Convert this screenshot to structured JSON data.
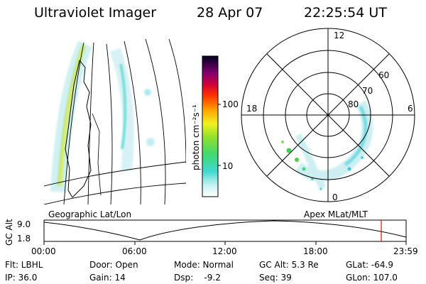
{
  "header": {
    "title": "Ultraviolet Imager",
    "date": "28 Apr 07",
    "time": "22:25:54 UT"
  },
  "colorbar": {
    "label": "photon cm⁻²s⁻¹",
    "ticks": [
      "100",
      "10"
    ]
  },
  "polar": {
    "mlt_labels": {
      "top": "12",
      "left": "18",
      "right": "6",
      "bottom": "0"
    },
    "lat_labels": [
      "60",
      "70",
      "80"
    ]
  },
  "timeline": {
    "left_title": "Geographic Lat/Lon",
    "right_title": "Apex MLat/MLT",
    "ylabel": "GC Alt",
    "ytick_top": "9.0",
    "ytick_bottom": "1.8",
    "xticks": [
      "00:00",
      "06:00",
      "12:00",
      "18:00",
      "23:59"
    ],
    "marker_color": "#ff0000"
  },
  "info": {
    "flt": "Flt: LBHL",
    "ip": "IP: 36.0",
    "door": "Door: Open",
    "gain": "Gain: 14",
    "mode": "Mode: Normal",
    "dsp": "Dsp:    -9.2",
    "gcalt": "GC Alt: 5.3 Re",
    "seq": "Seq: 39",
    "glat": "GLat: -64.9",
    "glon": "GLon: 107.0"
  }
}
